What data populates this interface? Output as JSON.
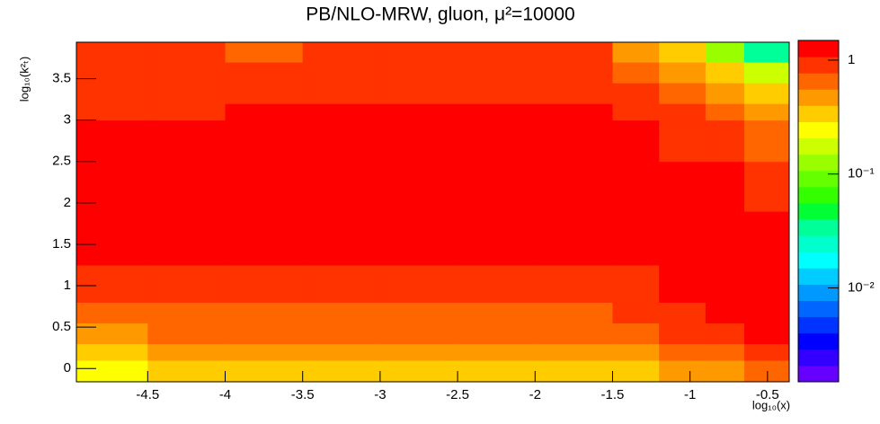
{
  "chart_data": {
    "type": "heatmap",
    "title": "PB/NLO-MRW, gluon, μ²=10000",
    "x_label": "log₁₀(x)",
    "y_label": "log₁₀(k²ₜ)",
    "xlim": [
      -4.96,
      -0.36
    ],
    "ylim": [
      -0.16,
      3.94
    ],
    "xticks": [
      -4.5,
      -4,
      -3.5,
      -3,
      -2.5,
      -2,
      -1.5,
      -1,
      -0.5
    ],
    "yticks": [
      0,
      0.5,
      1,
      1.5,
      2,
      2.5,
      3,
      3.5
    ],
    "xbins": [
      -4.96,
      -4.5,
      -4,
      -3.5,
      -3,
      -2.5,
      -2,
      -1.5,
      -1.2,
      -0.9,
      -0.65,
      -0.36
    ],
    "ybins": [
      -0.16,
      0.1,
      0.3,
      0.55,
      0.8,
      1.25,
      1.9,
      2.5,
      3.0,
      3.2,
      3.45,
      3.7,
      3.94
    ],
    "z": [
      [
        0.22,
        0.3,
        0.3,
        0.3,
        0.3,
        0.3,
        0.3,
        0.3,
        0.45,
        0.45,
        0.6
      ],
      [
        0.3,
        0.45,
        0.45,
        0.45,
        0.45,
        0.45,
        0.45,
        0.45,
        0.6,
        0.6,
        0.9
      ],
      [
        0.45,
        0.6,
        0.6,
        0.6,
        0.6,
        0.6,
        0.6,
        0.6,
        0.9,
        0.9,
        1.2
      ],
      [
        0.6,
        0.6,
        0.6,
        0.6,
        0.6,
        0.6,
        0.6,
        0.9,
        0.9,
        1.2,
        1.2
      ],
      [
        0.9,
        0.9,
        0.9,
        0.9,
        0.9,
        0.9,
        0.9,
        0.9,
        1.2,
        1.2,
        1.2
      ],
      [
        1.2,
        1.2,
        1.2,
        1.2,
        1.2,
        1.2,
        1.2,
        1.2,
        1.2,
        1.2,
        1.2
      ],
      [
        1.2,
        1.2,
        1.2,
        1.2,
        1.2,
        1.2,
        1.2,
        1.2,
        1.2,
        1.2,
        0.9
      ],
      [
        1.2,
        1.2,
        1.2,
        1.2,
        1.2,
        1.2,
        1.2,
        1.2,
        0.9,
        0.9,
        0.6
      ],
      [
        0.9,
        0.9,
        1.2,
        1.2,
        1.2,
        1.2,
        1.2,
        0.9,
        0.9,
        0.6,
        0.45
      ],
      [
        0.9,
        0.9,
        0.9,
        0.9,
        0.9,
        0.9,
        0.9,
        0.9,
        0.6,
        0.45,
        0.3
      ],
      [
        0.9,
        0.9,
        0.9,
        0.9,
        0.9,
        0.9,
        0.9,
        0.6,
        0.45,
        0.3,
        0.16
      ],
      [
        0.9,
        0.9,
        0.6,
        0.9,
        0.9,
        0.9,
        0.9,
        0.45,
        0.3,
        0.11,
        0.04
      ]
    ],
    "zlog": true,
    "zlim": [
      0.0015,
      1.49
    ],
    "zticks": [
      {
        "value": 1,
        "label": "1"
      },
      {
        "value": 0.1,
        "label": "10⁻¹"
      },
      {
        "value": 0.01,
        "label": "10⁻²"
      }
    ],
    "palette": [
      "#6600ff",
      "#3300ff",
      "#0000ff",
      "#0033ff",
      "#0066ff",
      "#0099ff",
      "#00ccff",
      "#00ffff",
      "#00ffcc",
      "#00ff99",
      "#00ff33",
      "#33ff00",
      "#66ff00",
      "#99ff00",
      "#ccff00",
      "#ffff00",
      "#ffcc00",
      "#ff9900",
      "#ff6600",
      "#ff3300",
      "#ff0000"
    ]
  }
}
